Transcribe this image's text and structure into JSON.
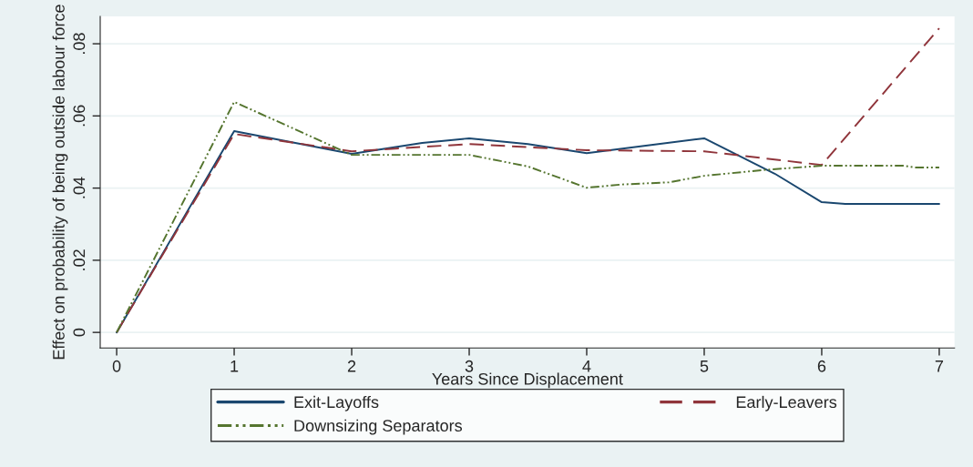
{
  "chart_data": {
    "type": "line",
    "xlabel": "Years Since Displacement",
    "ylabel": "Effect on probability of being outside labour force",
    "xlim": [
      -0.14,
      7.13
    ],
    "ylim": [
      -0.0043,
      0.0876
    ],
    "xticks": [
      0,
      1,
      2,
      3,
      4,
      5,
      6,
      7
    ],
    "yticks": [
      {
        "value": 0,
        "label": "0"
      },
      {
        "value": 0.02,
        "label": ".02"
      },
      {
        "value": 0.04,
        "label": ".04"
      },
      {
        "value": 0.06,
        "label": ".06"
      },
      {
        "value": 0.08,
        "label": ".08"
      }
    ],
    "grid": "y",
    "legend": "bottom",
    "series": [
      {
        "name": "Exit-Layoffs",
        "color": "#1a476f",
        "line_style": "solid",
        "x": [
          0,
          1,
          2,
          2.6,
          3,
          3.5,
          4,
          5,
          5.6,
          6,
          6.2,
          7
        ],
        "values": [
          0,
          0.0558,
          0.0495,
          0.0525,
          0.0538,
          0.0522,
          0.0497,
          0.0538,
          0.044,
          0.0361,
          0.0356,
          0.0356
        ]
      },
      {
        "name": "Early-Leavers",
        "color": "#90353b",
        "line_style": "dashed",
        "x": [
          0,
          1,
          2,
          3,
          4,
          5,
          6,
          7
        ],
        "values": [
          0,
          0.055,
          0.0502,
          0.0522,
          0.0505,
          0.0502,
          0.0464,
          0.0843
        ]
      },
      {
        "name": "Downsizing Separators",
        "color": "#55752f",
        "line_style": "dashdot",
        "x": [
          0,
          1,
          2,
          3,
          3.5,
          4,
          4.3,
          4.7,
          5,
          5.5,
          6,
          6.7,
          6.8,
          7
        ],
        "values": [
          0,
          0.0639,
          0.0492,
          0.0492,
          0.046,
          0.0401,
          0.041,
          0.0416,
          0.0434,
          0.045,
          0.0462,
          0.0462,
          0.0457,
          0.0457
        ]
      }
    ]
  }
}
